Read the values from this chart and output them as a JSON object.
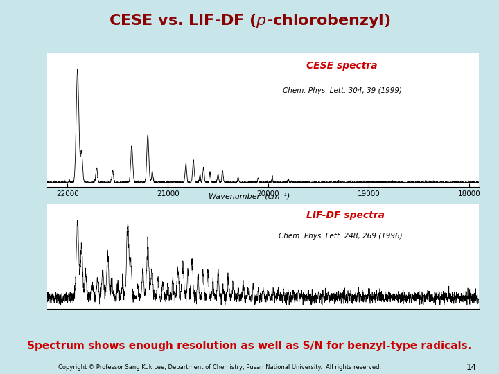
{
  "slide_bg": "#c8e6ea",
  "white_panel_bg": "#ffffff",
  "title_color": "#8b0000",
  "bottom_text": "Spectrum shows enough resolution as well as S/N for benzyl-type radicals.",
  "bottom_text_color": "#cc0000",
  "copyright_text": "Copyright © Professor Sang Kuk Lee, Department of Chemistry, Pusan National University.  All rights reserved.",
  "page_number": "14",
  "cese_label": "CESE spectra",
  "cese_ref": "Chem. Phys. Lett. 304, 39 (1999)",
  "lif_label": "LIF-DF spectra",
  "lif_ref": "Chem. Phys. Lett. 248, 269 (1996)",
  "xlabel": "Wavenumber  (cm⁻¹)",
  "xticks": [
    22000,
    21000,
    20000,
    19000,
    18000
  ],
  "xlim_left": 22200,
  "xlim_right": 17900,
  "line_color": "#000000",
  "cese_noise": 0.006,
  "lif_noise": 0.032,
  "seed": 42
}
